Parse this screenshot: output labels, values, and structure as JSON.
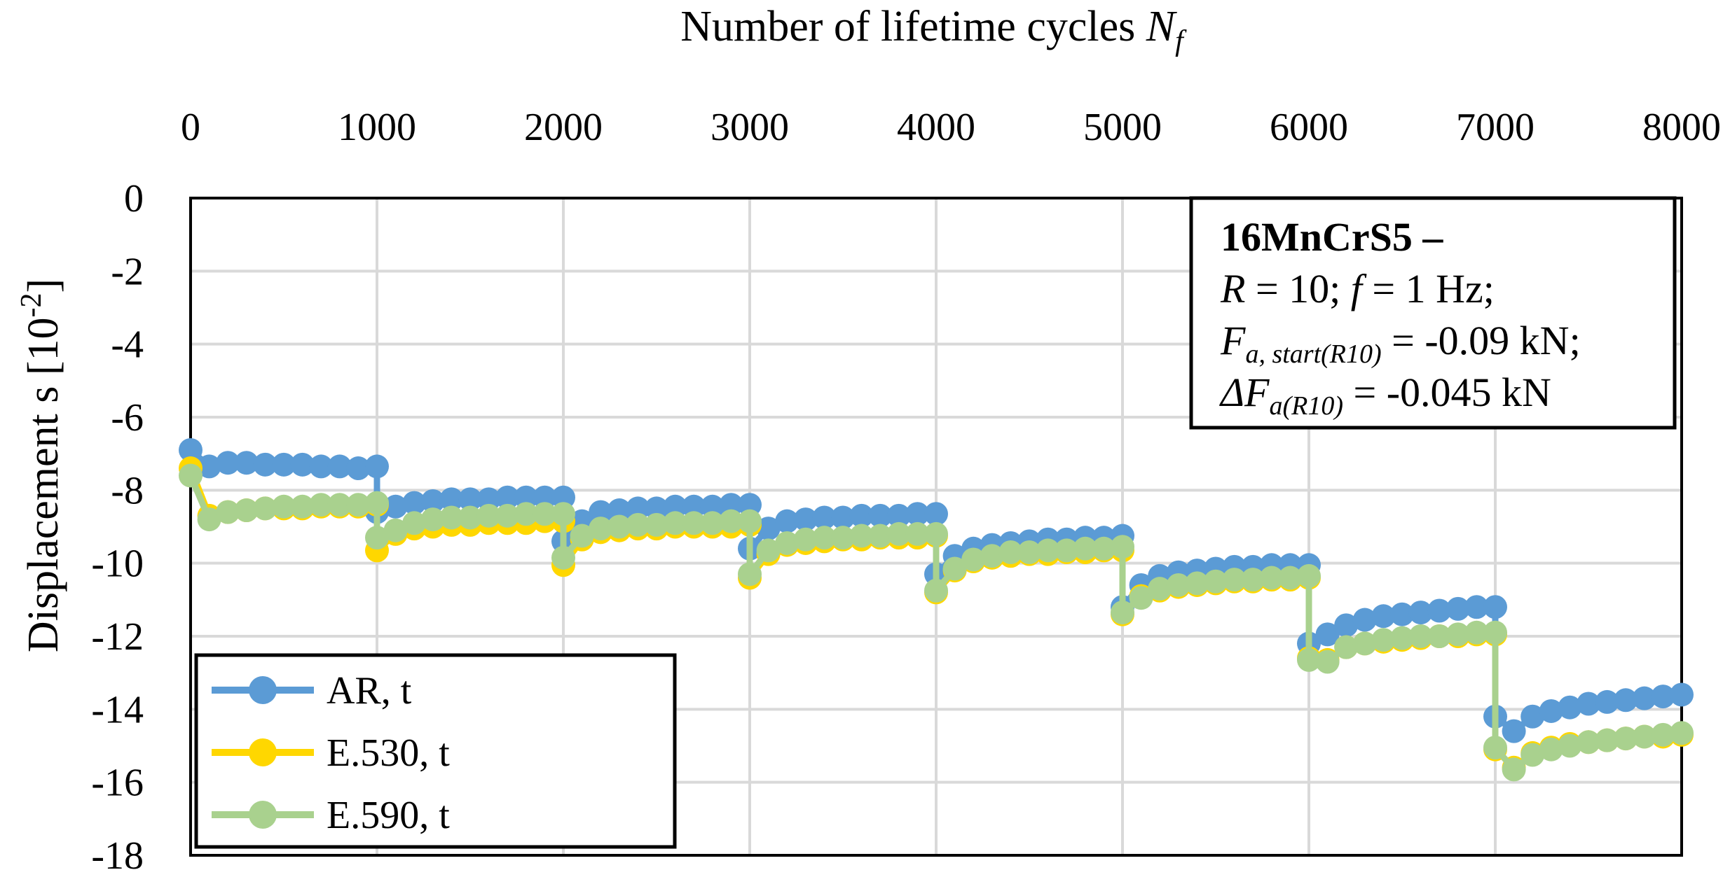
{
  "chart_data": {
    "type": "line",
    "x_title_main": "Number of lifetime cycles",
    "x_title_var": "N",
    "x_title_sub": "f",
    "y_title": "Displacement s [10",
    "y_title_sup": "-2",
    "y_title_end": "]",
    "xlim": [
      0,
      8000
    ],
    "ylim": [
      -18,
      0
    ],
    "x_ticks": [
      "0",
      "1000",
      "2000",
      "3000",
      "4000",
      "5000",
      "6000",
      "7000",
      "8000"
    ],
    "y_ticks": [
      "0",
      "-2",
      "-4",
      "-6",
      "-8",
      "-10",
      "-12",
      "-14",
      "-16",
      "-18"
    ],
    "x_tick_values": [
      0,
      1000,
      2000,
      3000,
      4000,
      5000,
      6000,
      7000,
      8000
    ],
    "y_tick_values": [
      0,
      -2,
      -4,
      -6,
      -8,
      -10,
      -12,
      -14,
      -16,
      -18
    ],
    "x": [
      0,
      100,
      200,
      300,
      400,
      500,
      600,
      700,
      800,
      900,
      1000,
      1000,
      1100,
      1200,
      1300,
      1400,
      1500,
      1600,
      1700,
      1800,
      1900,
      2000,
      2000,
      2100,
      2200,
      2300,
      2400,
      2500,
      2600,
      2700,
      2800,
      2900,
      3000,
      3000,
      3100,
      3200,
      3300,
      3400,
      3500,
      3600,
      3700,
      3800,
      3900,
      4000,
      4000,
      4100,
      4200,
      4300,
      4400,
      4500,
      4600,
      4700,
      4800,
      4900,
      5000,
      5000,
      5100,
      5200,
      5300,
      5400,
      5500,
      5600,
      5700,
      5800,
      5900,
      6000,
      6000,
      6100,
      6200,
      6300,
      6400,
      6500,
      6600,
      6700,
      6800,
      6900,
      7000,
      7000,
      7100,
      7200,
      7300,
      7400,
      7500,
      7600,
      7700,
      7800,
      7900,
      8000
    ],
    "series": [
      {
        "name": "AR, t",
        "color": "#5B9BD5",
        "values": [
          -6.9,
          -7.35,
          -7.25,
          -7.25,
          -7.3,
          -7.3,
          -7.3,
          -7.35,
          -7.35,
          -7.4,
          -7.35,
          -8.6,
          -8.45,
          -8.35,
          -8.3,
          -8.25,
          -8.25,
          -8.25,
          -8.2,
          -8.2,
          -8.2,
          -8.2,
          -9.4,
          -8.85,
          -8.6,
          -8.55,
          -8.5,
          -8.5,
          -8.45,
          -8.45,
          -8.45,
          -8.4,
          -8.4,
          -9.6,
          -9.05,
          -8.85,
          -8.8,
          -8.75,
          -8.75,
          -8.7,
          -8.7,
          -8.7,
          -8.65,
          -8.65,
          -10.3,
          -9.8,
          -9.6,
          -9.5,
          -9.45,
          -9.4,
          -9.35,
          -9.35,
          -9.3,
          -9.3,
          -9.25,
          -11.2,
          -10.6,
          -10.35,
          -10.25,
          -10.2,
          -10.15,
          -10.1,
          -10.1,
          -10.05,
          -10.05,
          -10.05,
          -12.2,
          -11.95,
          -11.7,
          -11.55,
          -11.45,
          -11.4,
          -11.35,
          -11.3,
          -11.25,
          -11.2,
          -11.2,
          -14.2,
          -14.6,
          -14.2,
          -14.05,
          -13.95,
          -13.85,
          -13.8,
          -13.75,
          -13.7,
          -13.65,
          -13.6
        ]
      },
      {
        "name": "E.530, t",
        "color": "#FFD700",
        "values": [
          -7.4,
          -8.7,
          -8.6,
          -8.55,
          -8.5,
          -8.5,
          -8.5,
          -8.45,
          -8.45,
          -8.45,
          -8.4,
          -9.65,
          -9.2,
          -9.05,
          -9.0,
          -8.95,
          -8.95,
          -8.9,
          -8.9,
          -8.9,
          -8.85,
          -8.85,
          -10.05,
          -9.35,
          -9.15,
          -9.1,
          -9.05,
          -9.05,
          -9.0,
          -9.0,
          -9.0,
          -9.0,
          -8.95,
          -10.4,
          -9.75,
          -9.5,
          -9.45,
          -9.4,
          -9.35,
          -9.35,
          -9.3,
          -9.3,
          -9.3,
          -9.25,
          -10.8,
          -10.2,
          -9.95,
          -9.85,
          -9.8,
          -9.75,
          -9.75,
          -9.7,
          -9.7,
          -9.65,
          -9.65,
          -11.4,
          -10.9,
          -10.75,
          -10.65,
          -10.6,
          -10.55,
          -10.5,
          -10.5,
          -10.45,
          -10.45,
          -10.4,
          -12.6,
          -12.65,
          -12.3,
          -12.2,
          -12.15,
          -12.1,
          -12.05,
          -12.0,
          -12.0,
          -11.95,
          -11.95,
          -15.1,
          -15.6,
          -15.2,
          -15.05,
          -14.95,
          -14.9,
          -14.85,
          -14.8,
          -14.75,
          -14.75,
          -14.7
        ]
      },
      {
        "name": "E.590, t",
        "color": "#A9D18E",
        "values": [
          -7.6,
          -8.8,
          -8.6,
          -8.55,
          -8.5,
          -8.45,
          -8.45,
          -8.4,
          -8.4,
          -8.4,
          -8.35,
          -9.3,
          -9.1,
          -8.9,
          -8.8,
          -8.75,
          -8.75,
          -8.7,
          -8.7,
          -8.65,
          -8.65,
          -8.65,
          -9.85,
          -9.25,
          -9.05,
          -9.0,
          -8.95,
          -8.95,
          -8.9,
          -8.9,
          -8.9,
          -8.85,
          -8.85,
          -10.3,
          -9.65,
          -9.45,
          -9.35,
          -9.3,
          -9.3,
          -9.25,
          -9.25,
          -9.2,
          -9.2,
          -9.2,
          -10.75,
          -10.15,
          -9.9,
          -9.8,
          -9.7,
          -9.7,
          -9.65,
          -9.65,
          -9.6,
          -9.6,
          -9.55,
          -11.35,
          -10.95,
          -10.7,
          -10.6,
          -10.55,
          -10.5,
          -10.45,
          -10.45,
          -10.4,
          -10.4,
          -10.35,
          -12.65,
          -12.7,
          -12.3,
          -12.2,
          -12.1,
          -12.05,
          -12.0,
          -12.0,
          -11.95,
          -11.9,
          -11.9,
          -15.05,
          -15.65,
          -15.25,
          -15.1,
          -15.0,
          -14.9,
          -14.85,
          -14.8,
          -14.75,
          -14.7,
          -14.65
        ]
      }
    ],
    "annotation": {
      "line1": "16MnCrS5 –",
      "line2_a": "R",
      "line2_b": " = 10; ",
      "line2_c": "f",
      "line2_d": " = 1 Hz;",
      "line3_a": "F",
      "line3_sub": "a, start(R10)",
      "line3_b": " = -0.09 kN;",
      "line4_a": "ΔF",
      "line4_sub": "a(R10)",
      "line4_b": " = -0.045 kN"
    },
    "legend_position": "bottom-left"
  }
}
